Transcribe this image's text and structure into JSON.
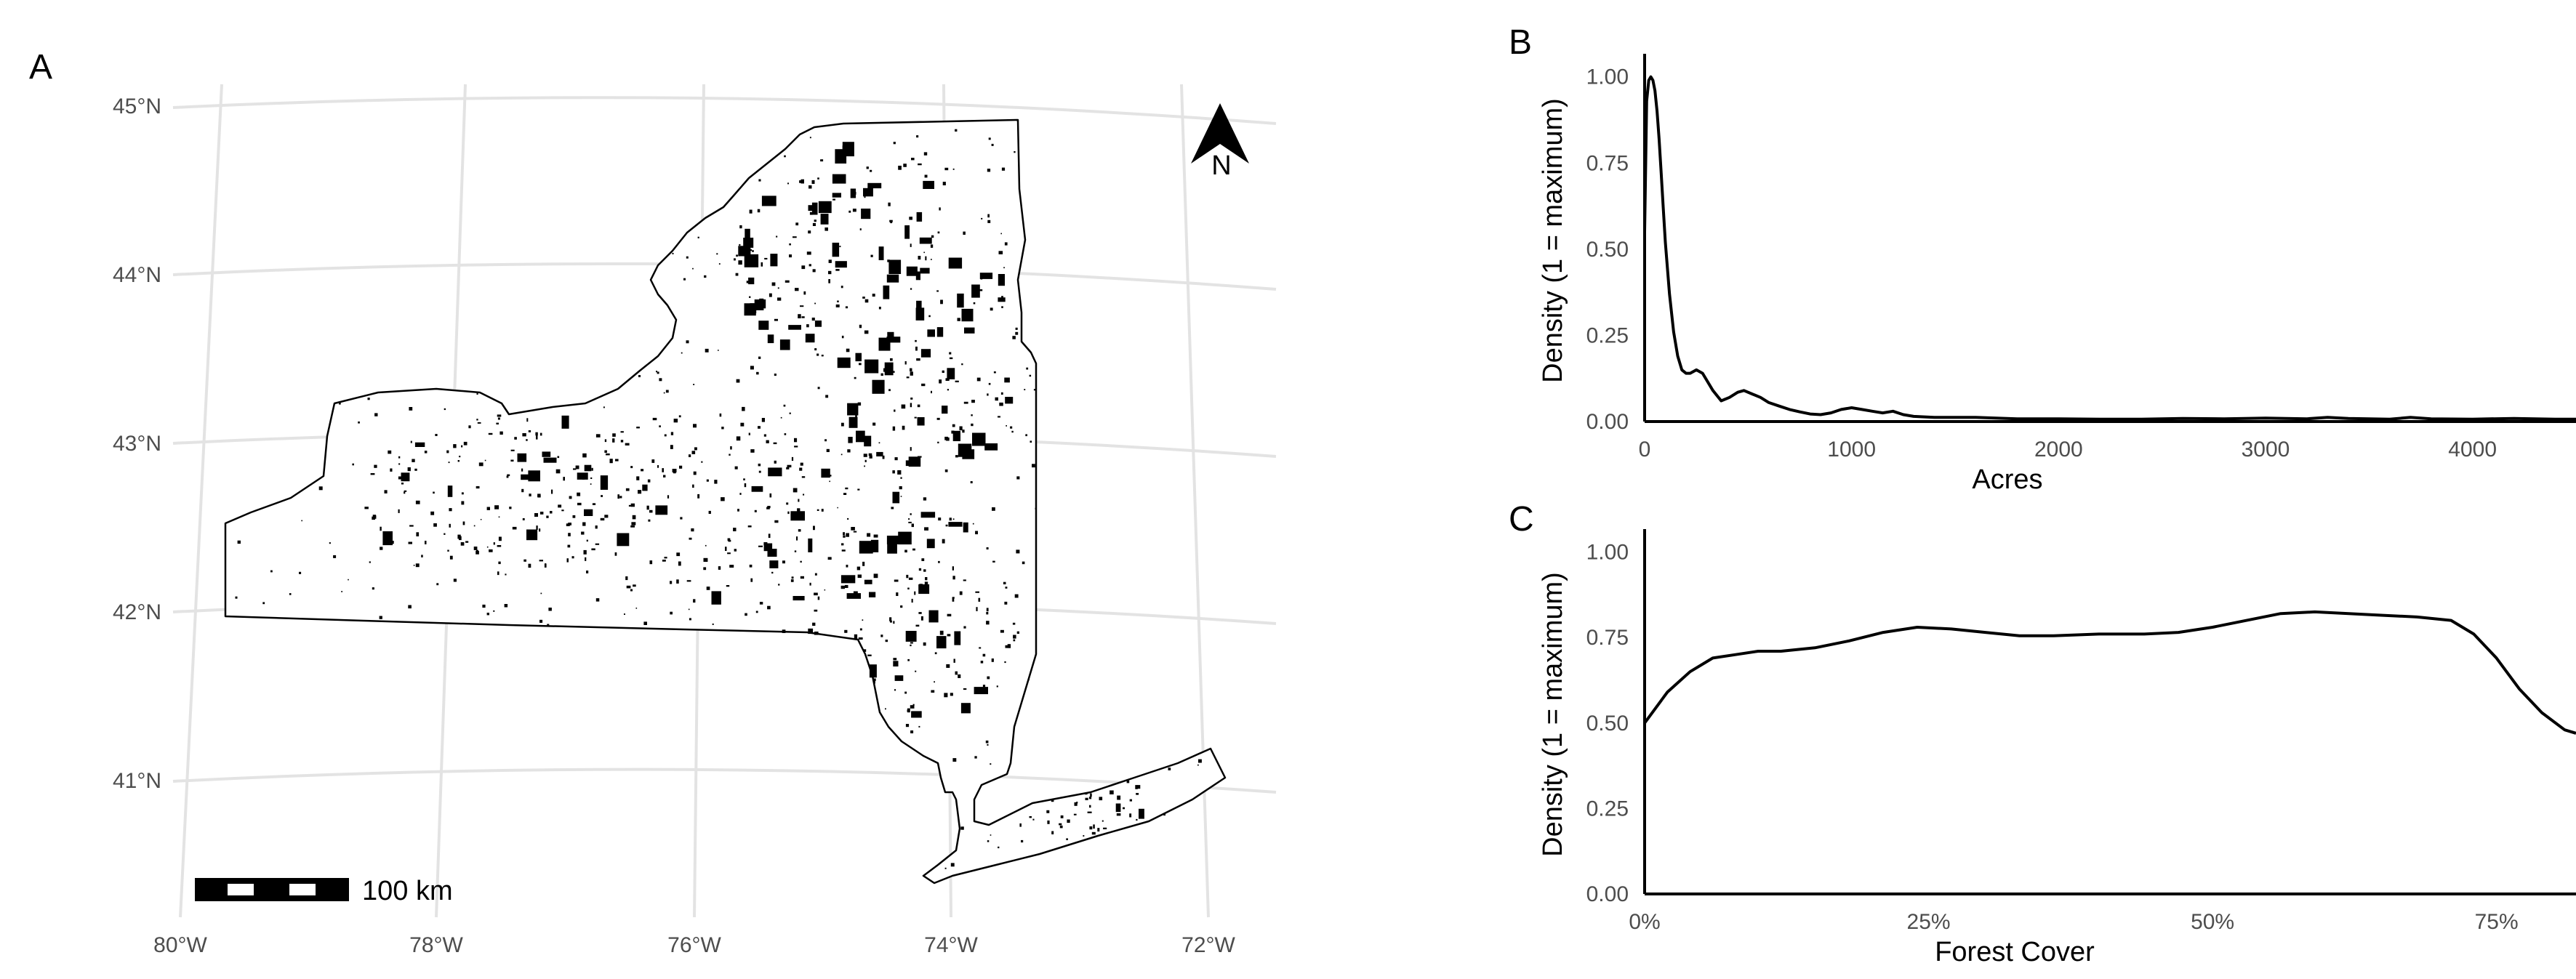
{
  "panels": {
    "a": {
      "letter": "A"
    },
    "b": {
      "letter": "B"
    },
    "c": {
      "letter": "C"
    }
  },
  "map": {
    "lat_labels": [
      "45°N",
      "44°N",
      "43°N",
      "42°N",
      "41°N"
    ],
    "lon_labels": [
      "80°W",
      "78°W",
      "76°W",
      "74°W",
      "72°W"
    ],
    "north_arrow_label": "N",
    "scale_bar_label": "100 km",
    "colors": {
      "grid": "#e3e3e3",
      "land": "#ffffff",
      "parcels": "#000000"
    }
  },
  "chart_data": [
    {
      "type": "line",
      "panel": "B",
      "xlabel": "Acres",
      "ylabel": "Density (1 = maximum)",
      "xlim": [
        0,
        4500
      ],
      "ylim": [
        0,
        1.05
      ],
      "x_ticks": [
        0,
        1000,
        2000,
        3000,
        4000
      ],
      "x_tick_labels": [
        "0",
        "1000",
        "2000",
        "3000",
        "4000"
      ],
      "y_ticks": [
        0,
        0.25,
        0.5,
        0.75,
        1.0
      ],
      "y_tick_labels": [
        "0.00",
        "0.25",
        "0.50",
        "0.75",
        "1.00"
      ],
      "x": [
        0,
        10,
        20,
        30,
        40,
        50,
        60,
        70,
        80,
        90,
        100,
        120,
        140,
        160,
        180,
        200,
        220,
        250,
        280,
        300,
        330,
        370,
        410,
        450,
        480,
        520,
        560,
        600,
        650,
        700,
        750,
        800,
        850,
        900,
        950,
        1000,
        1050,
        1100,
        1150,
        1200,
        1250,
        1300,
        1400,
        1500,
        1600,
        1700,
        1800,
        1900,
        2000,
        2200,
        2400,
        2600,
        2800,
        3000,
        3200,
        3300,
        3400,
        3600,
        3700,
        3800,
        4000,
        4200,
        4400,
        4500
      ],
      "y": [
        0.55,
        0.93,
        0.99,
        1.0,
        0.99,
        0.96,
        0.9,
        0.82,
        0.72,
        0.62,
        0.52,
        0.37,
        0.26,
        0.19,
        0.15,
        0.14,
        0.14,
        0.15,
        0.14,
        0.12,
        0.09,
        0.06,
        0.07,
        0.085,
        0.09,
        0.08,
        0.07,
        0.055,
        0.045,
        0.035,
        0.028,
        0.022,
        0.02,
        0.025,
        0.035,
        0.04,
        0.035,
        0.03,
        0.025,
        0.03,
        0.02,
        0.015,
        0.012,
        0.012,
        0.012,
        0.01,
        0.008,
        0.008,
        0.008,
        0.007,
        0.007,
        0.009,
        0.008,
        0.01,
        0.008,
        0.012,
        0.009,
        0.007,
        0.012,
        0.008,
        0.007,
        0.009,
        0.007,
        0.007
      ],
      "grid": false
    },
    {
      "type": "line",
      "panel": "C",
      "xlabel": "Forest Cover",
      "ylabel": "Density (1 = maximum)",
      "xlim": [
        0,
        0.82
      ],
      "ylim": [
        0,
        1.05
      ],
      "x_ticks": [
        0,
        0.25,
        0.5,
        0.75
      ],
      "x_tick_labels": [
        "0%",
        "25%",
        "50%",
        "75%"
      ],
      "y_ticks": [
        0,
        0.25,
        0.5,
        0.75,
        1.0
      ],
      "y_tick_labels": [
        "0.00",
        "0.25",
        "0.50",
        "0.75",
        "1.00"
      ],
      "x": [
        0,
        0.02,
        0.04,
        0.06,
        0.08,
        0.1,
        0.12,
        0.15,
        0.18,
        0.21,
        0.24,
        0.27,
        0.3,
        0.33,
        0.36,
        0.4,
        0.44,
        0.47,
        0.5,
        0.53,
        0.56,
        0.59,
        0.62,
        0.65,
        0.68,
        0.71,
        0.73,
        0.75,
        0.77,
        0.79,
        0.81,
        0.82
      ],
      "y": [
        0.5,
        0.59,
        0.65,
        0.69,
        0.7,
        0.71,
        0.71,
        0.72,
        0.74,
        0.765,
        0.78,
        0.775,
        0.765,
        0.755,
        0.755,
        0.76,
        0.76,
        0.765,
        0.78,
        0.8,
        0.82,
        0.825,
        0.82,
        0.815,
        0.81,
        0.8,
        0.76,
        0.69,
        0.6,
        0.53,
        0.48,
        0.47
      ],
      "grid": false
    }
  ]
}
